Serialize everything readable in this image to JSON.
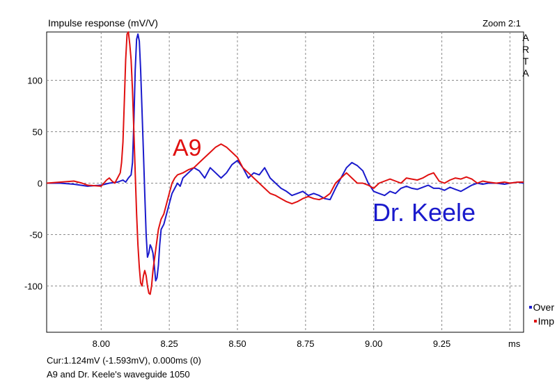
{
  "header": {
    "title": "Impulse response (mV/V)",
    "zoom": "Zoom 2:1",
    "brand_letters": [
      "A",
      "R",
      "T",
      "A"
    ]
  },
  "footer": {
    "cursor_readout": "Cur:1.124mV (-1.593mV), 0.000ms (0)",
    "caption": "A9 and Dr. Keele's waveguide 1050"
  },
  "colors": {
    "over": "#1a1acc",
    "imp": "#e01010",
    "grid": "#8a8a8a",
    "frame": "#000000"
  },
  "chart_data": {
    "type": "line",
    "title": "Impulse response (mV/V)",
    "xlabel": "ms",
    "ylabel": "",
    "xlim": [
      7.8,
      9.55
    ],
    "ylim": [
      -145,
      147
    ],
    "grid": true,
    "legend_position": "bottom-right",
    "x_ticks": [
      8.0,
      8.25,
      8.5,
      8.75,
      9.0,
      9.25
    ],
    "x_tick_labels": [
      "8.00",
      "8.25",
      "8.50",
      "8.75",
      "9.00",
      "9.25"
    ],
    "y_ticks": [
      100,
      50,
      0,
      -50,
      -100
    ],
    "y_tick_labels": [
      "100",
      "50",
      "0",
      "-50",
      "-100"
    ],
    "annotations": [
      {
        "text": "A9",
        "color": "#e01010",
        "x": 8.27,
        "y": 25
      },
      {
        "text": "Dr. Keele",
        "color": "#1a1acc",
        "x": 9.01,
        "y": -38
      }
    ],
    "series": [
      {
        "name": "Over",
        "color": "#1a1acc",
        "points": [
          [
            7.8,
            0
          ],
          [
            7.85,
            0
          ],
          [
            7.9,
            -1
          ],
          [
            7.95,
            -3
          ],
          [
            8.0,
            -2
          ],
          [
            8.03,
            0
          ],
          [
            8.06,
            1
          ],
          [
            8.08,
            3
          ],
          [
            8.09,
            1
          ],
          [
            8.1,
            5
          ],
          [
            8.11,
            8
          ],
          [
            8.115,
            20
          ],
          [
            8.12,
            60
          ],
          [
            8.125,
            110
          ],
          [
            8.13,
            140
          ],
          [
            8.135,
            145
          ],
          [
            8.14,
            138
          ],
          [
            8.145,
            110
          ],
          [
            8.15,
            70
          ],
          [
            8.155,
            30
          ],
          [
            8.16,
            -10
          ],
          [
            8.165,
            -50
          ],
          [
            8.17,
            -72
          ],
          [
            8.175,
            -68
          ],
          [
            8.18,
            -60
          ],
          [
            8.185,
            -63
          ],
          [
            8.19,
            -68
          ],
          [
            8.195,
            -80
          ],
          [
            8.2,
            -95
          ],
          [
            8.205,
            -92
          ],
          [
            8.21,
            -80
          ],
          [
            8.215,
            -60
          ],
          [
            8.22,
            -45
          ],
          [
            8.23,
            -40
          ],
          [
            8.24,
            -30
          ],
          [
            8.25,
            -20
          ],
          [
            8.26,
            -10
          ],
          [
            8.27,
            -5
          ],
          [
            8.28,
            0
          ],
          [
            8.29,
            -3
          ],
          [
            8.3,
            5
          ],
          [
            8.32,
            10
          ],
          [
            8.34,
            15
          ],
          [
            8.36,
            12
          ],
          [
            8.38,
            5
          ],
          [
            8.4,
            15
          ],
          [
            8.42,
            10
          ],
          [
            8.44,
            5
          ],
          [
            8.46,
            10
          ],
          [
            8.48,
            18
          ],
          [
            8.5,
            22
          ],
          [
            8.52,
            15
          ],
          [
            8.54,
            5
          ],
          [
            8.56,
            10
          ],
          [
            8.58,
            8
          ],
          [
            8.6,
            15
          ],
          [
            8.62,
            5
          ],
          [
            8.64,
            0
          ],
          [
            8.66,
            -5
          ],
          [
            8.68,
            -8
          ],
          [
            8.7,
            -12
          ],
          [
            8.72,
            -10
          ],
          [
            8.74,
            -8
          ],
          [
            8.76,
            -12
          ],
          [
            8.78,
            -10
          ],
          [
            8.8,
            -12
          ],
          [
            8.82,
            -15
          ],
          [
            8.84,
            -16
          ],
          [
            8.86,
            -5
          ],
          [
            8.88,
            5
          ],
          [
            8.9,
            15
          ],
          [
            8.92,
            20
          ],
          [
            8.94,
            17
          ],
          [
            8.96,
            12
          ],
          [
            8.98,
            0
          ],
          [
            9.0,
            -8
          ],
          [
            9.02,
            -10
          ],
          [
            9.04,
            -12
          ],
          [
            9.06,
            -8
          ],
          [
            9.08,
            -10
          ],
          [
            9.1,
            -5
          ],
          [
            9.12,
            -3
          ],
          [
            9.14,
            -5
          ],
          [
            9.16,
            -6
          ],
          [
            9.18,
            -4
          ],
          [
            9.2,
            -2
          ],
          [
            9.22,
            -5
          ],
          [
            9.24,
            -5
          ],
          [
            9.26,
            -7
          ],
          [
            9.28,
            -4
          ],
          [
            9.3,
            -6
          ],
          [
            9.32,
            -8
          ],
          [
            9.34,
            -5
          ],
          [
            9.36,
            -2
          ],
          [
            9.38,
            0
          ],
          [
            9.4,
            -1
          ],
          [
            9.42,
            0
          ],
          [
            9.45,
            0
          ],
          [
            9.48,
            -1
          ],
          [
            9.5,
            0
          ],
          [
            9.53,
            1
          ],
          [
            9.55,
            0
          ]
        ]
      },
      {
        "name": "Imp",
        "color": "#e01010",
        "points": [
          [
            7.8,
            0
          ],
          [
            7.85,
            1
          ],
          [
            7.9,
            2
          ],
          [
            7.93,
            0
          ],
          [
            7.95,
            -2
          ],
          [
            8.0,
            -3
          ],
          [
            8.02,
            3
          ],
          [
            8.03,
            5
          ],
          [
            8.04,
            2
          ],
          [
            8.05,
            0
          ],
          [
            8.06,
            5
          ],
          [
            8.07,
            10
          ],
          [
            8.075,
            20
          ],
          [
            8.08,
            40
          ],
          [
            8.085,
            80
          ],
          [
            8.09,
            120
          ],
          [
            8.095,
            145
          ],
          [
            8.1,
            147
          ],
          [
            8.105,
            135
          ],
          [
            8.11,
            120
          ],
          [
            8.115,
            90
          ],
          [
            8.12,
            50
          ],
          [
            8.125,
            10
          ],
          [
            8.13,
            -30
          ],
          [
            8.135,
            -60
          ],
          [
            8.14,
            -82
          ],
          [
            8.145,
            -97
          ],
          [
            8.15,
            -100
          ],
          [
            8.155,
            -90
          ],
          [
            8.16,
            -85
          ],
          [
            8.165,
            -90
          ],
          [
            8.17,
            -100
          ],
          [
            8.175,
            -107
          ],
          [
            8.18,
            -108
          ],
          [
            8.185,
            -100
          ],
          [
            8.19,
            -85
          ],
          [
            8.2,
            -65
          ],
          [
            8.21,
            -45
          ],
          [
            8.22,
            -35
          ],
          [
            8.23,
            -30
          ],
          [
            8.24,
            -20
          ],
          [
            8.25,
            -10
          ],
          [
            8.26,
            0
          ],
          [
            8.27,
            5
          ],
          [
            8.28,
            8
          ],
          [
            8.3,
            10
          ],
          [
            8.32,
            13
          ],
          [
            8.34,
            15
          ],
          [
            8.36,
            20
          ],
          [
            8.38,
            25
          ],
          [
            8.4,
            30
          ],
          [
            8.42,
            35
          ],
          [
            8.44,
            38
          ],
          [
            8.46,
            35
          ],
          [
            8.48,
            30
          ],
          [
            8.5,
            25
          ],
          [
            8.52,
            15
          ],
          [
            8.54,
            10
          ],
          [
            8.56,
            5
          ],
          [
            8.58,
            0
          ],
          [
            8.6,
            -5
          ],
          [
            8.62,
            -10
          ],
          [
            8.64,
            -12
          ],
          [
            8.66,
            -15
          ],
          [
            8.68,
            -18
          ],
          [
            8.7,
            -20
          ],
          [
            8.72,
            -18
          ],
          [
            8.74,
            -15
          ],
          [
            8.76,
            -13
          ],
          [
            8.78,
            -15
          ],
          [
            8.8,
            -16
          ],
          [
            8.82,
            -14
          ],
          [
            8.84,
            -10
          ],
          [
            8.86,
            0
          ],
          [
            8.88,
            5
          ],
          [
            8.9,
            10
          ],
          [
            8.92,
            5
          ],
          [
            8.94,
            0
          ],
          [
            8.96,
            0
          ],
          [
            8.98,
            -2
          ],
          [
            9.0,
            -5
          ],
          [
            9.02,
            0
          ],
          [
            9.04,
            2
          ],
          [
            9.06,
            4
          ],
          [
            9.08,
            2
          ],
          [
            9.1,
            0
          ],
          [
            9.12,
            5
          ],
          [
            9.14,
            4
          ],
          [
            9.16,
            3
          ],
          [
            9.18,
            5
          ],
          [
            9.2,
            8
          ],
          [
            9.22,
            10
          ],
          [
            9.24,
            2
          ],
          [
            9.26,
            0
          ],
          [
            9.28,
            3
          ],
          [
            9.3,
            5
          ],
          [
            9.32,
            4
          ],
          [
            9.34,
            6
          ],
          [
            9.36,
            4
          ],
          [
            9.38,
            0
          ],
          [
            9.4,
            2
          ],
          [
            9.42,
            1
          ],
          [
            9.45,
            0
          ],
          [
            9.48,
            1
          ],
          [
            9.5,
            0
          ],
          [
            9.53,
            1
          ],
          [
            9.55,
            1
          ]
        ]
      }
    ]
  }
}
